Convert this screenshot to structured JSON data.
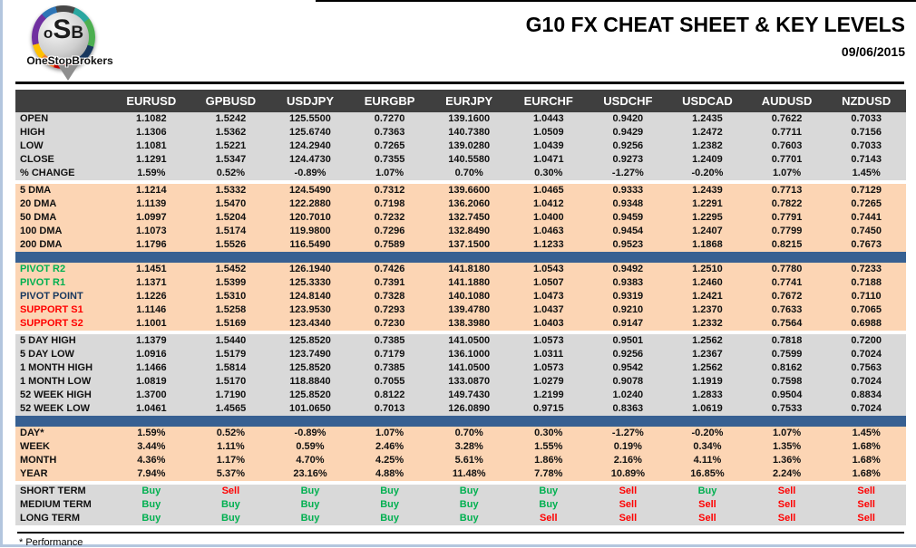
{
  "header": {
    "title": "G10 FX CHEAT SHEET & KEY LEVELS",
    "date": "09/06/2015",
    "logo": {
      "initial_o": "o",
      "initial_s": "S",
      "initial_b": "B",
      "brand": "OneStopBrokers"
    }
  },
  "colors": {
    "header_bg": "#3f3f3f",
    "row_gray": "#d9d9d9",
    "row_orange": "#fcd5b4",
    "divider_blue": "#376092",
    "buy_green": "#00B050",
    "sell_red": "#FF0000",
    "pivot_green": "#00B050",
    "pivot_navy": "#17375E",
    "support_red": "#FF0000"
  },
  "table": {
    "columns": [
      "EURUSD",
      "GPBUSD",
      "USDJPY",
      "EURGBP",
      "EURJPY",
      "EURCHF",
      "USDCHF",
      "USDCAD",
      "AUDUSD",
      "NZDUSD"
    ],
    "sections": [
      {
        "name": "ohlc",
        "bg": "gray",
        "after": "gap",
        "rows": [
          {
            "label": "OPEN",
            "values": [
              "1.1082",
              "1.5242",
              "125.5500",
              "0.7270",
              "139.1600",
              "1.0443",
              "0.9420",
              "1.2435",
              "0.7622",
              "0.7033"
            ]
          },
          {
            "label": "HIGH",
            "values": [
              "1.1306",
              "1.5362",
              "125.6740",
              "0.7363",
              "140.7380",
              "1.0509",
              "0.9429",
              "1.2472",
              "0.7711",
              "0.7156"
            ]
          },
          {
            "label": "LOW",
            "values": [
              "1.1081",
              "1.5221",
              "124.2940",
              "0.7265",
              "139.0280",
              "1.0439",
              "0.9256",
              "1.2382",
              "0.7603",
              "0.7033"
            ]
          },
          {
            "label": "CLOSE",
            "values": [
              "1.1291",
              "1.5347",
              "124.4730",
              "0.7355",
              "140.5580",
              "1.0471",
              "0.9273",
              "1.2409",
              "0.7701",
              "0.7143"
            ]
          },
          {
            "label": "% CHANGE",
            "values": [
              "1.59%",
              "0.52%",
              "-0.89%",
              "1.07%",
              "0.70%",
              "0.30%",
              "-1.27%",
              "-0.20%",
              "1.07%",
              "1.45%"
            ]
          }
        ]
      },
      {
        "name": "moving-averages",
        "bg": "orange",
        "after": "divider",
        "rows": [
          {
            "label": "5 DMA",
            "values": [
              "1.1214",
              "1.5332",
              "124.5490",
              "0.7312",
              "139.6600",
              "1.0465",
              "0.9333",
              "1.2439",
              "0.7713",
              "0.7129"
            ]
          },
          {
            "label": "20 DMA",
            "values": [
              "1.1139",
              "1.5470",
              "122.2880",
              "0.7198",
              "136.2060",
              "1.0412",
              "0.9348",
              "1.2291",
              "0.7822",
              "0.7265"
            ]
          },
          {
            "label": "50 DMA",
            "values": [
              "1.0997",
              "1.5204",
              "120.7010",
              "0.7232",
              "132.7450",
              "1.0400",
              "0.9459",
              "1.2295",
              "0.7791",
              "0.7441"
            ]
          },
          {
            "label": "100 DMA",
            "values": [
              "1.1073",
              "1.5174",
              "119.9800",
              "0.7296",
              "132.8490",
              "1.0463",
              "0.9454",
              "1.2407",
              "0.7799",
              "0.7450"
            ]
          },
          {
            "label": "200 DMA",
            "values": [
              "1.1796",
              "1.5526",
              "116.5490",
              "0.7589",
              "137.1500",
              "1.1233",
              "0.9523",
              "1.1868",
              "0.8215",
              "0.7673"
            ]
          }
        ]
      },
      {
        "name": "pivots",
        "bg": "orange",
        "after": "gap",
        "rows": [
          {
            "label": "PIVOT R2",
            "label_color": "#00B050",
            "values": [
              "1.1451",
              "1.5452",
              "126.1940",
              "0.7426",
              "141.8180",
              "1.0543",
              "0.9492",
              "1.2510",
              "0.7780",
              "0.7233"
            ]
          },
          {
            "label": "PIVOT R1",
            "label_color": "#00B050",
            "values": [
              "1.1371",
              "1.5399",
              "125.3330",
              "0.7391",
              "141.1880",
              "1.0507",
              "0.9383",
              "1.2460",
              "0.7741",
              "0.7188"
            ]
          },
          {
            "label": "PIVOT POINT",
            "label_color": "#17375E",
            "values": [
              "1.1226",
              "1.5310",
              "124.8140",
              "0.7328",
              "140.1080",
              "1.0473",
              "0.9319",
              "1.2421",
              "0.7672",
              "0.7110"
            ]
          },
          {
            "label": "SUPPORT S1",
            "label_color": "#FF0000",
            "values": [
              "1.1146",
              "1.5258",
              "123.9530",
              "0.7293",
              "139.4780",
              "1.0437",
              "0.9210",
              "1.2370",
              "0.7633",
              "0.7065"
            ]
          },
          {
            "label": "SUPPORT S2",
            "label_color": "#FF0000",
            "values": [
              "1.1001",
              "1.5169",
              "123.4340",
              "0.7230",
              "138.3980",
              "1.0403",
              "0.9147",
              "1.2332",
              "0.7564",
              "0.6988"
            ]
          }
        ]
      },
      {
        "name": "ranges",
        "bg": "gray",
        "after": "divider",
        "rows": [
          {
            "label": "5 DAY HIGH",
            "values": [
              "1.1379",
              "1.5440",
              "125.8520",
              "0.7385",
              "141.0500",
              "1.0573",
              "0.9501",
              "1.2562",
              "0.7818",
              "0.7200"
            ]
          },
          {
            "label": "5 DAY LOW",
            "values": [
              "1.0916",
              "1.5179",
              "123.7490",
              "0.7179",
              "136.1000",
              "1.0311",
              "0.9256",
              "1.2367",
              "0.7599",
              "0.7024"
            ]
          },
          {
            "label": "1 MONTH HIGH",
            "values": [
              "1.1466",
              "1.5814",
              "125.8520",
              "0.7385",
              "141.0500",
              "1.0573",
              "0.9542",
              "1.2562",
              "0.8162",
              "0.7563"
            ]
          },
          {
            "label": "1 MONTH LOW",
            "values": [
              "1.0819",
              "1.5170",
              "118.8840",
              "0.7055",
              "133.0870",
              "1.0279",
              "0.9078",
              "1.1919",
              "0.7598",
              "0.7024"
            ]
          },
          {
            "label": "52 WEEK HIGH",
            "values": [
              "1.3700",
              "1.7190",
              "125.8520",
              "0.8122",
              "149.7430",
              "1.2199",
              "1.0240",
              "1.2833",
              "0.9504",
              "0.8834"
            ]
          },
          {
            "label": "52 WEEK LOW",
            "values": [
              "1.0461",
              "1.4565",
              "101.0650",
              "0.7013",
              "126.0890",
              "0.9715",
              "0.8363",
              "1.0619",
              "0.7533",
              "0.7024"
            ]
          }
        ]
      },
      {
        "name": "performance",
        "bg": "orange",
        "after": "gap",
        "rows": [
          {
            "label": "DAY*",
            "values": [
              "1.59%",
              "0.52%",
              "-0.89%",
              "1.07%",
              "0.70%",
              "0.30%",
              "-1.27%",
              "-0.20%",
              "1.07%",
              "1.45%"
            ]
          },
          {
            "label": "WEEK",
            "values": [
              "3.44%",
              "1.11%",
              "0.59%",
              "2.46%",
              "3.28%",
              "1.55%",
              "0.19%",
              "0.34%",
              "1.35%",
              "1.68%"
            ]
          },
          {
            "label": "MONTH",
            "values": [
              "4.36%",
              "1.17%",
              "4.70%",
              "4.25%",
              "5.61%",
              "1.86%",
              "2.16%",
              "4.11%",
              "1.36%",
              "1.68%"
            ]
          },
          {
            "label": "YEAR",
            "values": [
              "7.94%",
              "5.37%",
              "23.16%",
              "4.88%",
              "11.48%",
              "7.78%",
              "10.89%",
              "16.85%",
              "2.24%",
              "1.68%"
            ]
          }
        ]
      },
      {
        "name": "signals",
        "bg": "gray",
        "after": "none",
        "rows": [
          {
            "label": "SHORT TERM",
            "values": [
              "Buy",
              "Sell",
              "Buy",
              "Buy",
              "Buy",
              "Buy",
              "Sell",
              "Buy",
              "Sell",
              "Sell"
            ]
          },
          {
            "label": "MEDIUM TERM",
            "values": [
              "Buy",
              "Buy",
              "Buy",
              "Buy",
              "Buy",
              "Buy",
              "Sell",
              "Sell",
              "Sell",
              "Sell"
            ]
          },
          {
            "label": "LONG TERM",
            "values": [
              "Buy",
              "Buy",
              "Buy",
              "Buy",
              "Buy",
              "Sell",
              "Sell",
              "Sell",
              "Sell",
              "Sell"
            ]
          }
        ]
      }
    ]
  },
  "footer": {
    "note": "* Performance"
  }
}
